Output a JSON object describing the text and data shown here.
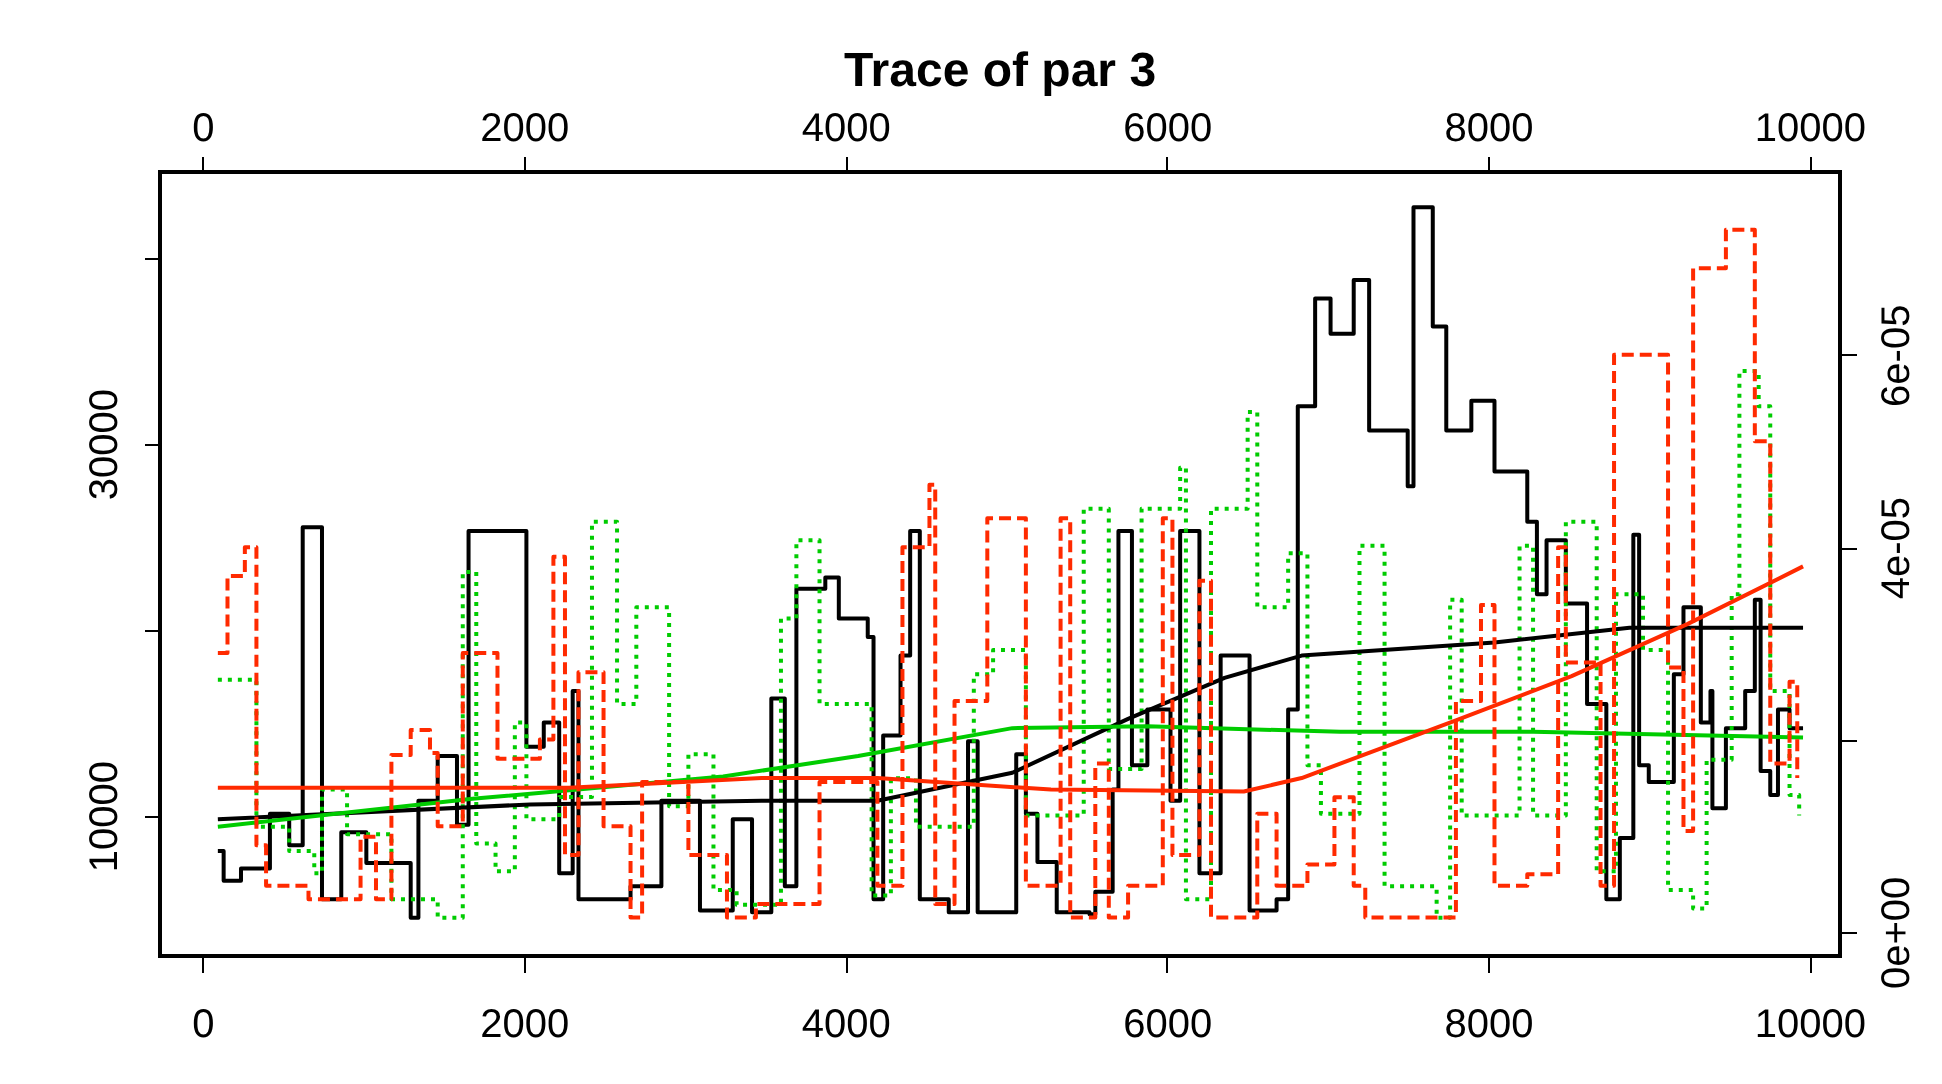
{
  "chart_data": {
    "type": "step",
    "title": "Trace of par 3",
    "xlim": [
      -264,
      10190
    ],
    "xticks": [
      0,
      2000,
      4000,
      6000,
      8000,
      10000
    ],
    "x2lim": [
      -264,
      10190
    ],
    "x2ticks": [
      0,
      2000,
      4000,
      6000,
      8000,
      10000
    ],
    "ylim": [
      2450,
      44600
    ],
    "yticks": [
      10000,
      {
        "value": 20000,
        "label": null
      },
      30000,
      {
        "value": 40000,
        "label": null
      }
    ],
    "y2lim": [
      -2.5e-06,
      7.9e-05
    ],
    "y2ticks": [
      {
        "value": 0,
        "label": "0e+00"
      },
      {
        "value": 2e-05,
        "label": null
      },
      {
        "value": 4e-05,
        "label": "4e-05"
      },
      {
        "value": 6e-05,
        "label": "6e-05"
      }
    ],
    "series": [
      {
        "color": "#000000",
        "line_style": "solid",
        "x": [
          96,
          132,
          240,
          420,
          540,
          624,
          744,
          864,
          1020,
          1296,
          1344,
          1464,
          1584,
          1656,
          2016,
          2124,
          2220,
          2304,
          2340,
          2664,
          2856,
          3096,
          3300,
          3420,
          3540,
          3624,
          3696,
          3876,
          3960,
          4140,
          4176,
          4236,
          4344,
          4404,
          4464,
          4644,
          4764,
          4824,
          5064,
          5124,
          5196,
          5316,
          5520,
          5556,
          5664,
          5700,
          5784,
          5880,
          6024,
          6084,
          6204,
          6336,
          6516,
          6684,
          6756,
          6816,
          6924,
          7020,
          7164,
          7260,
          7500,
          7536,
          7656,
          7740,
          7896,
          8040,
          8244,
          8304,
          8364,
          8484,
          8616,
          8736,
          8820,
          8904,
          8940,
          9000,
          9156,
          9216,
          9324,
          9384,
          9396,
          9480,
          9600,
          9660,
          9696,
          9756,
          9804,
          9876,
          9960
        ],
        "values": [
          8100,
          6500,
          7150,
          10100,
          8400,
          25500,
          5500,
          9100,
          7450,
          4500,
          10800,
          13200,
          9500,
          25300,
          13700,
          15000,
          6900,
          16700,
          5500,
          6200,
          10800,
          4900,
          9800,
          4800,
          16300,
          6200,
          22200,
          22800,
          20600,
          19600,
          5500,
          14300,
          18600,
          25300,
          5500,
          4800,
          14000,
          4800,
          13300,
          10100,
          7500,
          4800,
          4700,
          5900,
          11400,
          25300,
          12700,
          15700,
          10800,
          25300,
          6900,
          18600,
          4900,
          5500,
          15700,
          32000,
          37800,
          35900,
          38800,
          30700,
          27700,
          42700,
          36300,
          30700,
          32300,
          28500,
          25800,
          21900,
          24800,
          21400,
          16000,
          5500,
          8800,
          25100,
          12700,
          11800,
          17600,
          21200,
          15000,
          16700,
          10400,
          14700,
          16700,
          21600,
          12400,
          11100,
          15700,
          14700,
          14700
        ]
      },
      {
        "color": "#ff2a00",
        "line_style": "dashed",
        "axis": "y2",
        "x": [
          96,
          156,
          264,
          336,
          396,
          660,
          984,
          1080,
          1176,
          1296,
          1416,
          1464,
          1620,
          1836,
          2100,
          2184,
          2256,
          2340,
          2496,
          2664,
          2736,
          3024,
          3264,
          3444,
          3840,
          4200,
          4356,
          4524,
          4560,
          4680,
          4884,
          5124,
          5340,
          5400,
          5556,
          5640,
          5760,
          5976,
          6036,
          6204,
          6276,
          6564,
          6684,
          6876,
          7044,
          7164,
          7236,
          7800,
          7956,
          8040,
          8244,
          8436,
          8484,
          8700,
          8784,
          9120,
          9216,
          9276,
          9480,
          9660,
          9756,
          9876,
          9924
        ],
        "values": [
          2.9e-05,
          3.7e-05,
          4e-05,
          9e-06,
          4.8e-06,
          3.4e-06,
          9.9e-06,
          3.4e-06,
          1.84e-05,
          2.1e-05,
          1.86e-05,
          1.1e-05,
          2.9e-05,
          1.8e-05,
          2e-05,
          3.9e-05,
          8e-06,
          2.7e-05,
          1.1e-05,
          1.5e-06,
          1.56e-05,
          8e-06,
          1.5e-06,
          2.9e-06,
          1.56e-05,
          4.8e-06,
          4e-05,
          4.65e-05,
          2.9e-06,
          2.4e-05,
          4.3e-05,
          4.8e-06,
          4.3e-05,
          1.5e-06,
          1.75e-05,
          1.5e-06,
          4.8e-06,
          4.3e-05,
          8e-06,
          3.65e-05,
          1.5e-06,
          1.23e-05,
          4.8e-06,
          7e-06,
          1.4e-05,
          4.8e-06,
          1.5e-06,
          2.4e-05,
          3.4e-05,
          4.8e-06,
          6e-06,
          4e-05,
          2.8e-05,
          4.8e-06,
          6e-05,
          2.75e-05,
          1.05e-05,
          6.9e-05,
          7.3e-05,
          5.1e-05,
          1.75e-05,
          2.6e-05,
          1.6e-05
        ]
      },
      {
        "color": "#00cc00",
        "line_style": "dotted",
        "x": [
          96,
          336,
          540,
          696,
          744,
          900,
          1176,
          1464,
          1620,
          1704,
          1824,
          1944,
          2016,
          2220,
          2424,
          2580,
          2700,
          2904,
          3024,
          3180,
          3324,
          3600,
          3696,
          3840,
          4164,
          4284,
          4440,
          4800,
          4920,
          5124,
          5484,
          5640,
          5844,
          6084,
          6120,
          6276,
          6504,
          6564,
          6756,
          6876,
          6960,
          7200,
          7356,
          7680,
          7764,
          7836,
          8196,
          8280,
          8484,
          8676,
          8796,
          8964,
          9120,
          9276,
          9360,
          9516,
          9564,
          9684,
          9756,
          9876,
          9936
        ],
        "values": [
          17300,
          9400,
          8100,
          6900,
          11400,
          9000,
          5500,
          4500,
          23100,
          8500,
          7000,
          15000,
          9800,
          11000,
          25800,
          16000,
          21200,
          10500,
          13300,
          6000,
          5200,
          20600,
          24800,
          16000,
          5700,
          12000,
          9400,
          17600,
          18900,
          10000,
          26500,
          12500,
          26500,
          28700,
          5500,
          26500,
          31700,
          21200,
          24100,
          12700,
          10100,
          24500,
          6200,
          4500,
          21600,
          10000,
          24500,
          10000,
          25800,
          7000,
          21900,
          18900,
          6000,
          5000,
          13000,
          21900,
          33900,
          32000,
          16700,
          11100,
          10000
        ]
      },
      {
        "type": "line",
        "color": "#000000",
        "line_style": "solid",
        "x": [
          96,
          2040,
          3480,
          4200,
          5040,
          5760,
          6360,
          6840,
          8040,
          8880,
          9960
        ],
        "values": [
          9800,
          10600,
          10800,
          10800,
          12300,
          15200,
          17400,
          18600,
          19300,
          20100,
          20100
        ]
      },
      {
        "type": "line",
        "color": "#ff2a00",
        "line_style": "solid",
        "axis": "y2",
        "x": [
          96,
          2280,
          3480,
          4200,
          5280,
          6480,
          6840,
          7800,
          8520,
          9240,
          9960
        ],
        "values": [
          1.5e-05,
          1.5e-05,
          1.6e-05,
          1.6e-05,
          1.48e-05,
          1.46e-05,
          1.6e-05,
          2.2e-05,
          2.66e-05,
          3.2e-05,
          3.8e-05
        ]
      },
      {
        "type": "line",
        "color": "#00cc00",
        "line_style": "solid",
        "x": [
          96,
          1680,
          3240,
          4080,
          5040,
          5880,
          7080,
          8280,
          9960
        ],
        "values": [
          9400,
          10900,
          12100,
          13200,
          14700,
          14800,
          14500,
          14500,
          14200
        ]
      }
    ]
  }
}
